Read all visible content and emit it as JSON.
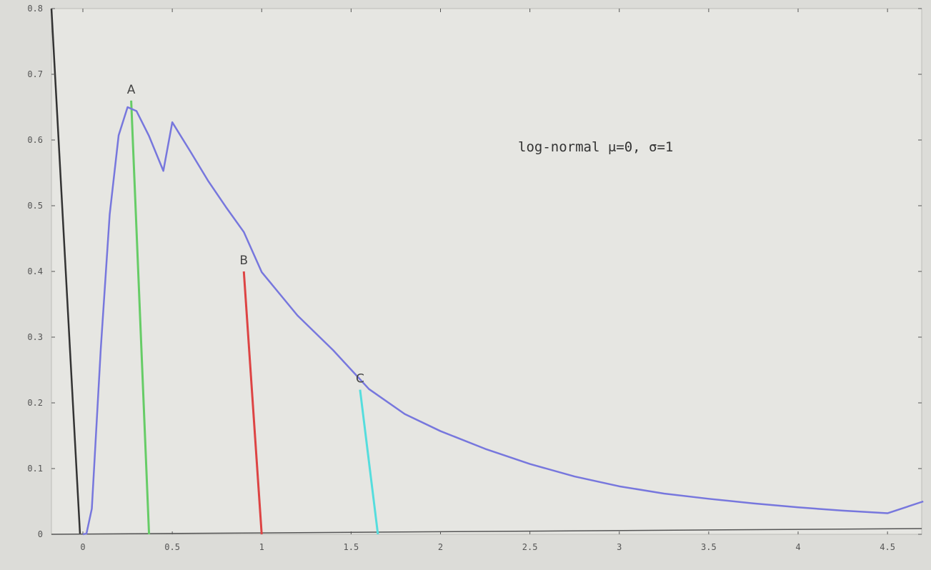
{
  "chart_data": {
    "type": "line",
    "legend_text": "log-normal μ=0, σ=1",
    "legend_placement": "top-right",
    "grid": false,
    "xlim": [
      0,
      4.7
    ],
    "ylim": [
      0,
      0.8
    ],
    "x_ticks": [
      "0",
      "0.5",
      "1",
      "1.5",
      "2",
      "2.5",
      "3",
      "3.5",
      "4",
      "4.5"
    ],
    "y_ticks": [
      "0",
      "0.1",
      "0.2",
      "0.3",
      "0.4",
      "0.5",
      "0.6",
      "0.7",
      "0.8"
    ],
    "series": [
      {
        "color": "#7777dd",
        "x": [
          0.0,
          0.02,
          0.05,
          0.1,
          0.15,
          0.2,
          0.25,
          0.3,
          0.37,
          0.45,
          0.5,
          0.6,
          0.7,
          0.8,
          0.9,
          1.0,
          1.2,
          1.4,
          1.6,
          1.8,
          2.0,
          2.25,
          2.5,
          2.75,
          3.0,
          3.25,
          3.5,
          3.75,
          4.0,
          4.25,
          4.5,
          4.7
        ],
        "y": [
          0.0,
          0.001,
          0.039,
          0.282,
          0.487,
          0.607,
          0.65,
          0.644,
          0.606,
          0.553,
          0.627,
          0.583,
          0.538,
          0.498,
          0.46,
          0.399,
          0.333,
          0.28,
          0.221,
          0.183,
          0.157,
          0.13,
          0.107,
          0.088,
          0.073,
          0.062,
          0.054,
          0.047,
          0.041,
          0.036,
          0.032,
          0.05
        ]
      }
    ],
    "markers": [
      {
        "label": "A",
        "x": 0.37,
        "y": 0.66,
        "color": "#66cc66"
      },
      {
        "label": "B",
        "x": 1.0,
        "y": 0.4,
        "color": "#dd4444"
      },
      {
        "label": "C",
        "x": 1.65,
        "y": 0.22,
        "color": "#55dddd"
      }
    ]
  }
}
